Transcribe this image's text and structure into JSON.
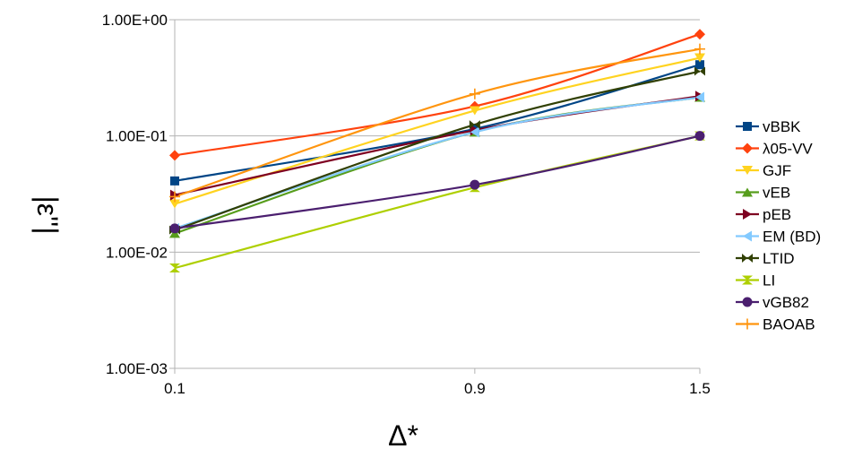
{
  "chart_data": {
    "type": "line",
    "x": [
      0.1,
      0.9,
      1.5
    ],
    "x_tick_labels": [
      "0.1",
      "0.9",
      "1.5"
    ],
    "xlabel": "Δ*",
    "ylabel": "|ε''|",
    "yscale": "log",
    "ylim": [
      0.001,
      1.0
    ],
    "y_tick_labels": [
      "1.00E-03",
      "1.00E-02",
      "1.00E-01",
      "1.00E+00"
    ],
    "grid": "horizontal",
    "legend_position": "right",
    "series": [
      {
        "name": "vBBK",
        "color": "#004586",
        "marker": "square",
        "values": [
          0.041,
          0.115,
          0.41
        ]
      },
      {
        "name": "λ05-VV",
        "color": "#ff420e",
        "marker": "diamond",
        "values": [
          0.068,
          0.18,
          0.75
        ]
      },
      {
        "name": "GJF",
        "color": "#ffd320",
        "marker": "triangle-down",
        "values": [
          0.026,
          0.165,
          0.47
        ]
      },
      {
        "name": "vEB",
        "color": "#579d1c",
        "marker": "triangle-up",
        "values": [
          0.0145,
          0.108,
          0.215
        ]
      },
      {
        "name": "pEB",
        "color": "#7e0021",
        "marker": "triangle-right",
        "values": [
          0.031,
          0.112,
          0.22
        ]
      },
      {
        "name": "EM (BD)",
        "color": "#83caff",
        "marker": "triangle-left",
        "values": [
          0.016,
          0.108,
          0.215
        ]
      },
      {
        "name": "LTID",
        "color": "#314004",
        "marker": "bowtie",
        "values": [
          0.0155,
          0.125,
          0.36
        ]
      },
      {
        "name": "LI",
        "color": "#aecf00",
        "marker": "hourglass",
        "values": [
          0.0073,
          0.036,
          0.1
        ]
      },
      {
        "name": "vGB82",
        "color": "#4b1f6f",
        "marker": "circle",
        "values": [
          0.016,
          0.038,
          0.1
        ]
      },
      {
        "name": "BAOAB",
        "color": "#ff950e",
        "marker": "plus",
        "values": [
          0.03,
          0.23,
          0.56
        ]
      }
    ]
  }
}
